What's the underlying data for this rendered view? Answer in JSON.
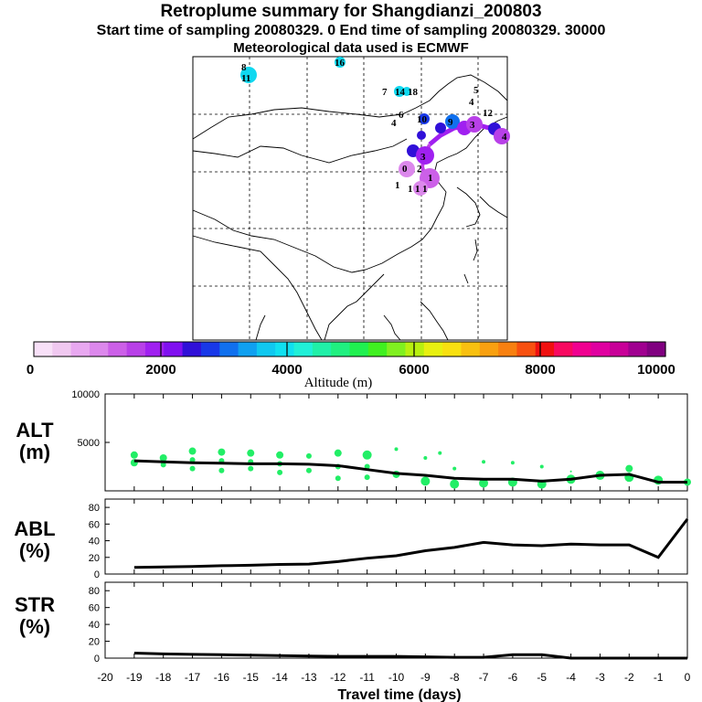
{
  "header": {
    "title": "Retroplume summary for Shangdianzi_200803",
    "sampling": "Start time of sampling 20080329.    0     End time of sampling 20080329. 30000",
    "met": "Meteorological data used is ECMWF"
  },
  "colors": {
    "marker_alt": "#22ee66",
    "line": "#000000",
    "frame": "#000000",
    "colorbar": [
      "#f8e0f8",
      "#f0c8f0",
      "#e8a8f0",
      "#dc88ec",
      "#cc60e8",
      "#b840e8",
      "#a020f0",
      "#8010f0",
      "#3010d8",
      "#1838e8",
      "#1070ee",
      "#10a0f0",
      "#10c8f0",
      "#10e0f0",
      "#20f0d8",
      "#20f0a8",
      "#20f080",
      "#20f050",
      "#40f020",
      "#80f020",
      "#b8f010",
      "#e8f010",
      "#f8e010",
      "#f8c010",
      "#f8a010",
      "#f88010",
      "#f85010",
      "#f01010",
      "#f80860",
      "#f00090",
      "#e000a0",
      "#c80098",
      "#a00090",
      "#800080"
    ]
  },
  "colorbar": {
    "label": "Altitude (m)",
    "ticks": [
      "0",
      "2000",
      "4000",
      "6000",
      "8000",
      "10000"
    ]
  },
  "map_labels": [
    "8",
    "11",
    "16",
    "7",
    "14",
    "18",
    "5",
    "4",
    "6",
    "4",
    "10",
    "9",
    "12",
    "3",
    "4",
    "3",
    "2",
    "1",
    "0",
    "1",
    "1",
    "1",
    "1"
  ],
  "chart_data": [
    {
      "type": "line",
      "panel": "ALT",
      "ylabel": "ALT\n(m)",
      "ylim": [
        0,
        10000
      ],
      "yticks": [
        "5000",
        "10000"
      ],
      "x": [
        -19,
        -18,
        -17,
        -16,
        -15,
        -14,
        -13,
        -12,
        -11,
        -10,
        -9,
        -8,
        -7,
        -6,
        -5,
        -4,
        -3,
        -2,
        -1,
        0
      ],
      "values": [
        3100,
        3000,
        2900,
        2850,
        2800,
        2800,
        2750,
        2600,
        2200,
        1800,
        1600,
        1300,
        1200,
        1200,
        1000,
        1200,
        1600,
        1700,
        900,
        900
      ],
      "scatter": {
        "x": [
          -19,
          -19,
          -18,
          -18,
          -17,
          -17,
          -17,
          -16,
          -16,
          -16,
          -15,
          -15,
          -15,
          -14,
          -14,
          -14,
          -13,
          -13,
          -12,
          -12,
          -12,
          -11,
          -11,
          -11,
          -10,
          -10,
          -9,
          -9,
          -8.5,
          -8,
          -8,
          -7,
          -7,
          -6,
          -6,
          -5,
          -5,
          -4,
          -4,
          -3,
          -2,
          -2,
          -1,
          0
        ],
        "y": [
          3700,
          2900,
          3400,
          2700,
          4100,
          3200,
          2300,
          4000,
          3100,
          2100,
          3900,
          3000,
          2300,
          3700,
          2800,
          1900,
          3600,
          2100,
          3900,
          2500,
          1300,
          3700,
          2500,
          1400,
          4300,
          1700,
          3400,
          1000,
          3900,
          2300,
          700,
          3000,
          800,
          2900,
          900,
          2500,
          700,
          2000,
          1200,
          1600,
          2300,
          1400,
          1100,
          900
        ],
        "r": [
          4,
          4,
          4,
          3,
          4,
          3,
          3,
          4,
          3,
          3,
          4,
          3,
          3,
          4,
          3,
          3,
          3,
          3,
          4,
          3,
          3,
          5,
          3,
          3,
          2,
          4,
          2,
          5,
          2,
          2,
          5,
          2,
          5,
          2,
          5,
          2,
          5,
          1,
          5,
          5,
          4,
          5,
          5,
          4
        ]
      },
      "marker_note": "green circles sized by fraction"
    },
    {
      "type": "line",
      "panel": "ABL",
      "ylabel": "ABL\n(%)",
      "ylim": [
        0,
        90
      ],
      "yticks": [
        "0",
        "20",
        "40",
        "60",
        "80"
      ],
      "x": [
        -19,
        -18,
        -17,
        -16,
        -15,
        -14,
        -13,
        -12,
        -11,
        -10,
        -9,
        -8,
        -7,
        -6,
        -5,
        -4,
        -3,
        -2,
        -1,
        0
      ],
      "values": [
        8,
        8.5,
        9,
        10,
        10.5,
        11.5,
        12,
        15,
        19,
        22,
        28,
        32,
        38,
        35,
        34,
        36,
        35,
        35,
        20,
        66
      ]
    },
    {
      "type": "line",
      "panel": "STR",
      "ylabel": "STR\n(%)",
      "ylim": [
        0,
        90
      ],
      "yticks": [
        "0",
        "20",
        "40",
        "60",
        "80"
      ],
      "x": [
        -19,
        -18,
        -17,
        -16,
        -15,
        -14,
        -13,
        -12,
        -11,
        -10,
        -9,
        -8,
        -7,
        -6,
        -5,
        -4,
        -3,
        -2,
        -1,
        0
      ],
      "values": [
        6,
        5,
        4.5,
        4,
        3.5,
        3,
        2.5,
        2,
        2,
        2,
        1.5,
        1,
        1,
        4,
        4,
        0,
        0,
        0,
        0,
        0
      ]
    }
  ],
  "xaxis": {
    "label": "Travel time (days)",
    "ticks": [
      "-20",
      "-19",
      "-18",
      "-17",
      "-16",
      "-15",
      "-14",
      "-13",
      "-12",
      "-11",
      "-10",
      "-9",
      "-8",
      "-7",
      "-6",
      "-5",
      "-4",
      "-3",
      "-2",
      "-1",
      "0"
    ]
  },
  "panel_titles": {
    "alt_top": "ALT",
    "alt_bottom": "(m)",
    "abl_top": "ABL",
    "abl_bottom": "(%)",
    "str_top": "STR",
    "str_bottom": "(%)"
  }
}
